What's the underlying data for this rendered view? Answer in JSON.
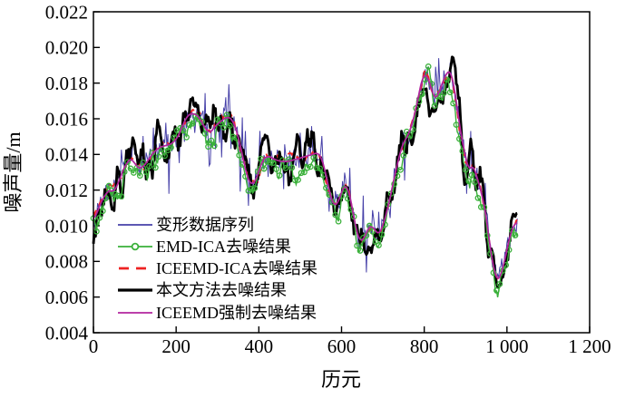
{
  "figure": {
    "background": "#ffffff",
    "axis_color": "#000000"
  },
  "chart_data": {
    "type": "line",
    "title": "",
    "xlabel": "历元",
    "ylabel": "噪声量/m",
    "xlim": [
      0,
      1200
    ],
    "ylim": [
      0.004,
      0.022
    ],
    "grid": false,
    "legend_position": "inside lower-left, no frame",
    "x_ticks": {
      "values": [
        0,
        200,
        400,
        600,
        800,
        1000,
        1200
      ],
      "labels": [
        "0",
        "200",
        "400",
        "600",
        "800",
        "1 000",
        "1 200"
      ]
    },
    "y_ticks": {
      "values": [
        0.004,
        0.006,
        0.008,
        0.01,
        0.012,
        0.014,
        0.016,
        0.018,
        0.02,
        0.022
      ],
      "labels": [
        "0.004",
        "0.006",
        "0.008",
        "0.010",
        "0.012",
        "0.014",
        "0.016",
        "0.018",
        "0.020",
        "0.022"
      ]
    },
    "series": [
      {
        "name": "变形数据序列",
        "color": "#4640a8",
        "style": "thin noisy line with vertical spikes"
      },
      {
        "name": "EMD-ICA去噪结果",
        "color": "#3ab03a",
        "style": "line with open circle markers"
      },
      {
        "name": "ICEEMD-ICA去噪结果",
        "color": "#ee2222",
        "style": "dashed line"
      },
      {
        "name": "本文方法去噪结果",
        "color": "#000000",
        "style": "thick line"
      },
      {
        "name": "ICEEMD强制去噪结果",
        "color": "#b2249e",
        "style": "smooth line"
      }
    ],
    "trend": {
      "x": [
        0,
        10,
        20,
        30,
        40,
        50,
        60,
        75,
        90,
        100,
        110,
        120,
        130,
        145,
        160,
        175,
        190,
        205,
        215,
        228,
        240,
        252,
        262,
        272,
        282,
        295,
        310,
        322,
        335,
        348,
        360,
        372,
        382,
        392,
        402,
        412,
        425,
        440,
        455,
        470,
        485,
        500,
        515,
        530,
        542,
        552,
        562,
        572,
        582,
        592,
        600,
        608,
        617,
        626,
        635,
        645,
        655,
        665,
        672,
        680,
        690,
        700,
        712,
        725,
        738,
        750,
        760,
        772,
        784,
        795,
        805,
        815,
        825,
        835,
        845,
        855,
        863,
        872,
        882,
        892,
        900,
        907,
        918,
        928,
        938,
        948,
        958,
        968,
        976,
        985,
        995,
        1005,
        1015,
        1025
      ],
      "y": [
        0.0103,
        0.0108,
        0.0114,
        0.0118,
        0.012,
        0.0119,
        0.0124,
        0.0133,
        0.0138,
        0.0135,
        0.0132,
        0.0133,
        0.0136,
        0.0141,
        0.0144,
        0.0145,
        0.0146,
        0.015,
        0.0156,
        0.0162,
        0.0163,
        0.0162,
        0.0158,
        0.0154,
        0.0152,
        0.0156,
        0.0159,
        0.0161,
        0.016,
        0.0152,
        0.014,
        0.0127,
        0.0123,
        0.0125,
        0.0132,
        0.0138,
        0.0139,
        0.0137,
        0.0136,
        0.0136,
        0.0137,
        0.0138,
        0.0139,
        0.014,
        0.0141,
        0.0138,
        0.0129,
        0.0118,
        0.0111,
        0.0113,
        0.0119,
        0.0123,
        0.012,
        0.011,
        0.0098,
        0.0091,
        0.0093,
        0.0099,
        0.01,
        0.0098,
        0.0095,
        0.01,
        0.011,
        0.0124,
        0.0138,
        0.0147,
        0.015,
        0.0158,
        0.017,
        0.0183,
        0.0185,
        0.0179,
        0.0171,
        0.0174,
        0.0181,
        0.0186,
        0.0187,
        0.0179,
        0.0162,
        0.0147,
        0.0139,
        0.0131,
        0.0134,
        0.0127,
        0.0119,
        0.0108,
        0.009,
        0.0076,
        0.0069,
        0.0072,
        0.0081,
        0.0092,
        0.01,
        0.0102
      ]
    },
    "sample_step": 2.5,
    "noise": {
      "seed": 7,
      "raw_jitter": 0.0006,
      "raw_spike_prob": 0.22,
      "raw_spike_amp": 0.0024,
      "denoised_band": 0.002,
      "denoised_jitter": 0.0004,
      "emd_offset": -0.00045,
      "emd_band": 0.0014,
      "iceemd_ica_band": 0.0009,
      "marker_every": 3
    }
  }
}
